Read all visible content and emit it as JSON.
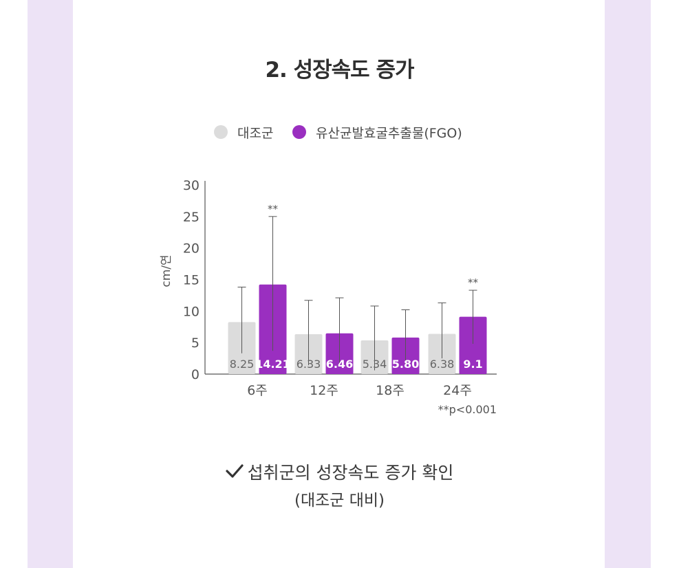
{
  "title": "2. 성장속도 증가",
  "legend": {
    "control": "대조군",
    "treatment": "유산균발효굴추출물(FGO)"
  },
  "colors": {
    "control": "#dcdcdc",
    "treatment": "#9a2fc0",
    "band": "#ede3f6"
  },
  "chart_data": {
    "type": "bar",
    "ylabel": "cm/연",
    "ylim": [
      0,
      30
    ],
    "yticks": [
      "0",
      "5",
      "10",
      "15",
      "20",
      "25",
      "30"
    ],
    "categories": [
      "6주",
      "12주",
      "18주",
      "24주"
    ],
    "series": [
      {
        "name": "대조군",
        "values": [
          8.25,
          6.33,
          5.34,
          6.38
        ],
        "labels": [
          "8.25",
          "6.33",
          "5.34",
          "6.38"
        ],
        "error_upper": [
          13.8,
          11.7,
          10.8,
          11.3
        ],
        "error_lower": [
          3.3,
          1.4,
          0.6,
          2.5
        ]
      },
      {
        "name": "유산균발효굴추출물(FGO)",
        "values": [
          14.21,
          6.46,
          5.8,
          9.1
        ],
        "labels": [
          "14.21",
          "6.46",
          "5.80",
          "9.1"
        ],
        "error_upper": [
          25.0,
          12.1,
          10.2,
          13.3
        ],
        "error_lower": [
          3.7,
          1.4,
          1.4,
          4.8
        ]
      }
    ],
    "significance": [
      "**",
      "",
      "",
      "**"
    ],
    "note": "**p<0.001"
  },
  "conclusion": {
    "icon": "check-icon",
    "line1": "섭취군의 성장속도 증가 확인",
    "line2": "(대조군 대비)"
  }
}
